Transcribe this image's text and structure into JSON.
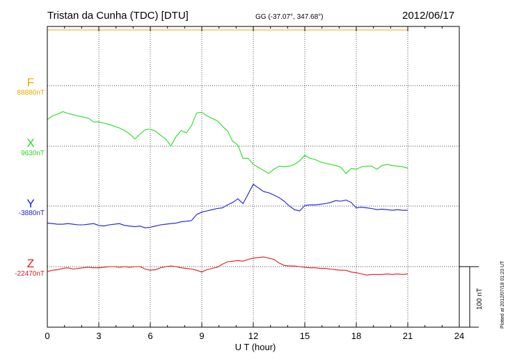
{
  "header": {
    "station": "Tristan da Cunha (TDC)  [DTU]",
    "coords": "GG (-37.07°, 347.68°)",
    "date": "2012/06/17"
  },
  "xaxis": {
    "label": "U T (hour)",
    "ticks": [
      "0",
      "3",
      "6",
      "9",
      "12",
      "15",
      "18",
      "21",
      "24"
    ]
  },
  "scale_label": "100 nT",
  "plotted_note": "Plotted at 2012/07/18 01:23 UT",
  "chart_data": {
    "type": "line",
    "title": "Tristan da Cunha (TDC)  [DTU]",
    "xlabel": "U T (hour)",
    "xlim": [
      0,
      24
    ],
    "grid": true,
    "scale_bar_nT": 100,
    "series": [
      {
        "name": "F",
        "baseline_label": "88880nT",
        "color": "#f0a800",
        "x": [
          0,
          21
        ],
        "y": [
          92,
          92
        ]
      },
      {
        "name": "X",
        "baseline_label": "9630nT",
        "color": "#22dd22",
        "x": [
          0,
          0.3,
          0.6,
          0.9,
          1.2,
          1.5,
          1.8,
          2.1,
          2.4,
          2.7,
          3,
          3.3,
          3.6,
          3.9,
          4.2,
          4.5,
          4.8,
          5.1,
          5.4,
          5.7,
          6,
          6.3,
          6.6,
          6.9,
          7.2,
          7.5,
          7.8,
          8.1,
          8.4,
          8.7,
          9,
          9.3,
          9.6,
          9.9,
          10.2,
          10.5,
          10.8,
          11.1,
          11.4,
          11.7,
          12,
          12.3,
          12.6,
          12.9,
          13.2,
          13.5,
          13.8,
          14.1,
          14.4,
          14.7,
          15,
          15.3,
          15.6,
          15.9,
          16.2,
          16.5,
          16.8,
          17.1,
          17.4,
          17.7,
          18,
          18.3,
          18.6,
          18.9,
          19.2,
          19.5,
          19.8,
          20.1,
          20.4,
          20.7,
          21
        ],
        "y": [
          44,
          50,
          53,
          57,
          54,
          52,
          50,
          48,
          46,
          40,
          40,
          38,
          36,
          33,
          30,
          26,
          20,
          12,
          20,
          27,
          28,
          25,
          18,
          12,
          0,
          16,
          26,
          22,
          34,
          55,
          56,
          50,
          46,
          42,
          33,
          25,
          8,
          2,
          -20,
          -20,
          -30,
          -35,
          -40,
          -45,
          -38,
          -33,
          -34,
          -33,
          -30,
          -24,
          -15,
          -20,
          -22,
          -26,
          -28,
          -30,
          -32,
          -35,
          -45,
          -37,
          -38,
          -34,
          -33,
          -33,
          -38,
          -32,
          -30,
          -32,
          -33,
          -34,
          -36
        ]
      },
      {
        "name": "Y",
        "baseline_label": "-3880nT",
        "color": "#1818dd",
        "x": [
          0,
          0.3,
          0.6,
          0.9,
          1.2,
          1.5,
          1.8,
          2.1,
          2.4,
          2.7,
          3,
          3.3,
          3.6,
          3.9,
          4.2,
          4.5,
          4.8,
          5.1,
          5.4,
          5.7,
          6,
          6.3,
          6.6,
          6.9,
          7.2,
          7.5,
          7.8,
          8.1,
          8.4,
          8.7,
          9,
          9.3,
          9.6,
          9.9,
          10.2,
          10.5,
          10.8,
          11.1,
          11.4,
          11.7,
          12,
          12.3,
          12.6,
          12.9,
          13.2,
          13.5,
          13.8,
          14.1,
          14.4,
          14.7,
          15,
          15.3,
          15.6,
          15.9,
          16.2,
          16.5,
          16.8,
          17.1,
          17.4,
          17.7,
          18,
          18.3,
          18.6,
          18.9,
          19.2,
          19.5,
          19.8,
          20.1,
          20.4,
          20.7,
          21
        ],
        "y": [
          -28,
          -29,
          -30,
          -30,
          -29,
          -30,
          -31,
          -31,
          -30,
          -29,
          -32,
          -33,
          -31,
          -30,
          -29,
          -32,
          -33,
          -34,
          -33,
          -36,
          -35,
          -33,
          -31,
          -30,
          -29,
          -28,
          -26,
          -25,
          -24,
          -14,
          -10,
          -8,
          -6,
          -4,
          -3,
          2,
          6,
          12,
          4,
          20,
          36,
          30,
          24,
          22,
          18,
          14,
          8,
          0,
          -6,
          -8,
          1,
          2,
          2,
          3,
          4,
          6,
          9,
          8,
          10,
          6,
          -3,
          -2,
          -3,
          -4,
          -6,
          -5,
          -6,
          -7,
          -6,
          -7,
          -7
        ]
      },
      {
        "name": "Z",
        "baseline_label": "-22470nT",
        "color": "#e01818",
        "x": [
          0,
          0.3,
          0.6,
          0.9,
          1.2,
          1.5,
          1.8,
          2.1,
          2.4,
          2.7,
          3,
          3.3,
          3.6,
          3.9,
          4.2,
          4.5,
          4.8,
          5.1,
          5.4,
          5.7,
          6,
          6.3,
          6.6,
          6.9,
          7.2,
          7.5,
          7.8,
          8.1,
          8.4,
          8.7,
          9,
          9.3,
          9.6,
          9.9,
          10.2,
          10.5,
          10.8,
          11.1,
          11.4,
          11.7,
          12,
          12.3,
          12.6,
          12.9,
          13.2,
          13.5,
          13.8,
          14.1,
          14.4,
          14.7,
          15,
          15.3,
          15.6,
          15.9,
          16.2,
          16.5,
          16.8,
          17.1,
          17.4,
          17.7,
          18,
          18.3,
          18.6,
          18.9,
          19.2,
          19.5,
          19.8,
          20.1,
          20.4,
          20.7,
          21
        ],
        "y": [
          -8,
          -6,
          -5,
          -3,
          -2,
          -4,
          -3,
          -2,
          -1,
          -2,
          -2,
          -1,
          0,
          0,
          -1,
          0,
          -1,
          0,
          0,
          -4,
          -6,
          -5,
          -2,
          0,
          1,
          0,
          -2,
          -3,
          -4,
          -6,
          -9,
          -5,
          -3,
          -1,
          4,
          8,
          9,
          10,
          9,
          12,
          14,
          15,
          16,
          14,
          12,
          6,
          2,
          1,
          1,
          0,
          -1,
          -2,
          -2,
          -3,
          -3,
          -4,
          -5,
          -6,
          -6,
          -9,
          -10,
          -12,
          -14,
          -13,
          -13,
          -13,
          -12,
          -13,
          -12,
          -13,
          -12
        ]
      }
    ]
  }
}
